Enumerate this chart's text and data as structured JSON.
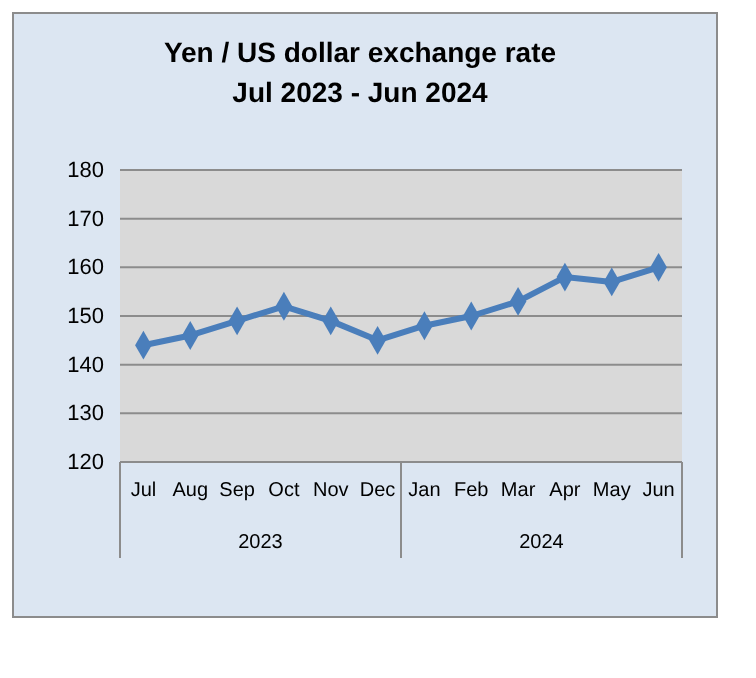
{
  "chart_data": {
    "type": "line",
    "title": "Yen / US dollar exchange rate\nJul 2023 - Jun 2024",
    "categories": [
      "Jul",
      "Aug",
      "Sep",
      "Oct",
      "Nov",
      "Dec",
      "Jan",
      "Feb",
      "Mar",
      "Apr",
      "May",
      "Jun"
    ],
    "series": [
      {
        "color": "#4a7ebb",
        "values": [
          144,
          146,
          149,
          152,
          149,
          145,
          148,
          150,
          153,
          158,
          157,
          160
        ]
      }
    ],
    "ylim": [
      120,
      180
    ],
    "yticks": [
      120,
      130,
      140,
      150,
      160,
      170,
      180
    ],
    "grid": "y",
    "marker": "diamond",
    "line_style": "solid",
    "annotations": [
      "2023",
      "2024"
    ]
  }
}
